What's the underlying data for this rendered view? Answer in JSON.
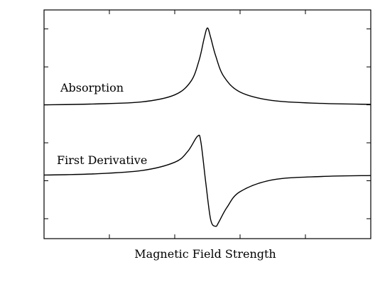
{
  "chart_data": {
    "type": "line",
    "title": "",
    "xlabel": "Magnetic Field Strength",
    "ylabel": "",
    "x_ticks_labeled": false,
    "y_ticks_labeled": false,
    "grid": false,
    "line_color": "#000000",
    "axis_color": "#000000",
    "series": [
      {
        "name": "Absorption",
        "label_text": "Absorption",
        "x": [
          0,
          1.5,
          3.0,
          4.0,
          4.5,
          4.75,
          4.9,
          5.0,
          5.1,
          5.25,
          5.5,
          6.0,
          7.0,
          8.5,
          10
        ],
        "y": [
          0.0,
          0.9,
          3.1,
          10.5,
          25.0,
          47.5,
          70.0,
          81.0,
          71.0,
          52.0,
          30.0,
          13.5,
          4.5,
          1.5,
          0.5
        ]
      },
      {
        "name": "First Derivative",
        "label_text": "First Derivative",
        "x": [
          0,
          1.5,
          3.0,
          4.0,
          4.4,
          4.7,
          4.8,
          4.95,
          5.1,
          5.25,
          5.35,
          5.6,
          6.0,
          7.0,
          8.5,
          10
        ],
        "y": [
          -74.0,
          -72.8,
          -69.2,
          -60.5,
          -49.0,
          -33.0,
          -39.0,
          -82.0,
          -121.0,
          -128.0,
          -123.5,
          -108.0,
          -91.5,
          -79.0,
          -75.5,
          -74.5
        ]
      }
    ],
    "xlim": [
      0,
      10
    ],
    "ylim": [
      -141,
      100
    ]
  }
}
